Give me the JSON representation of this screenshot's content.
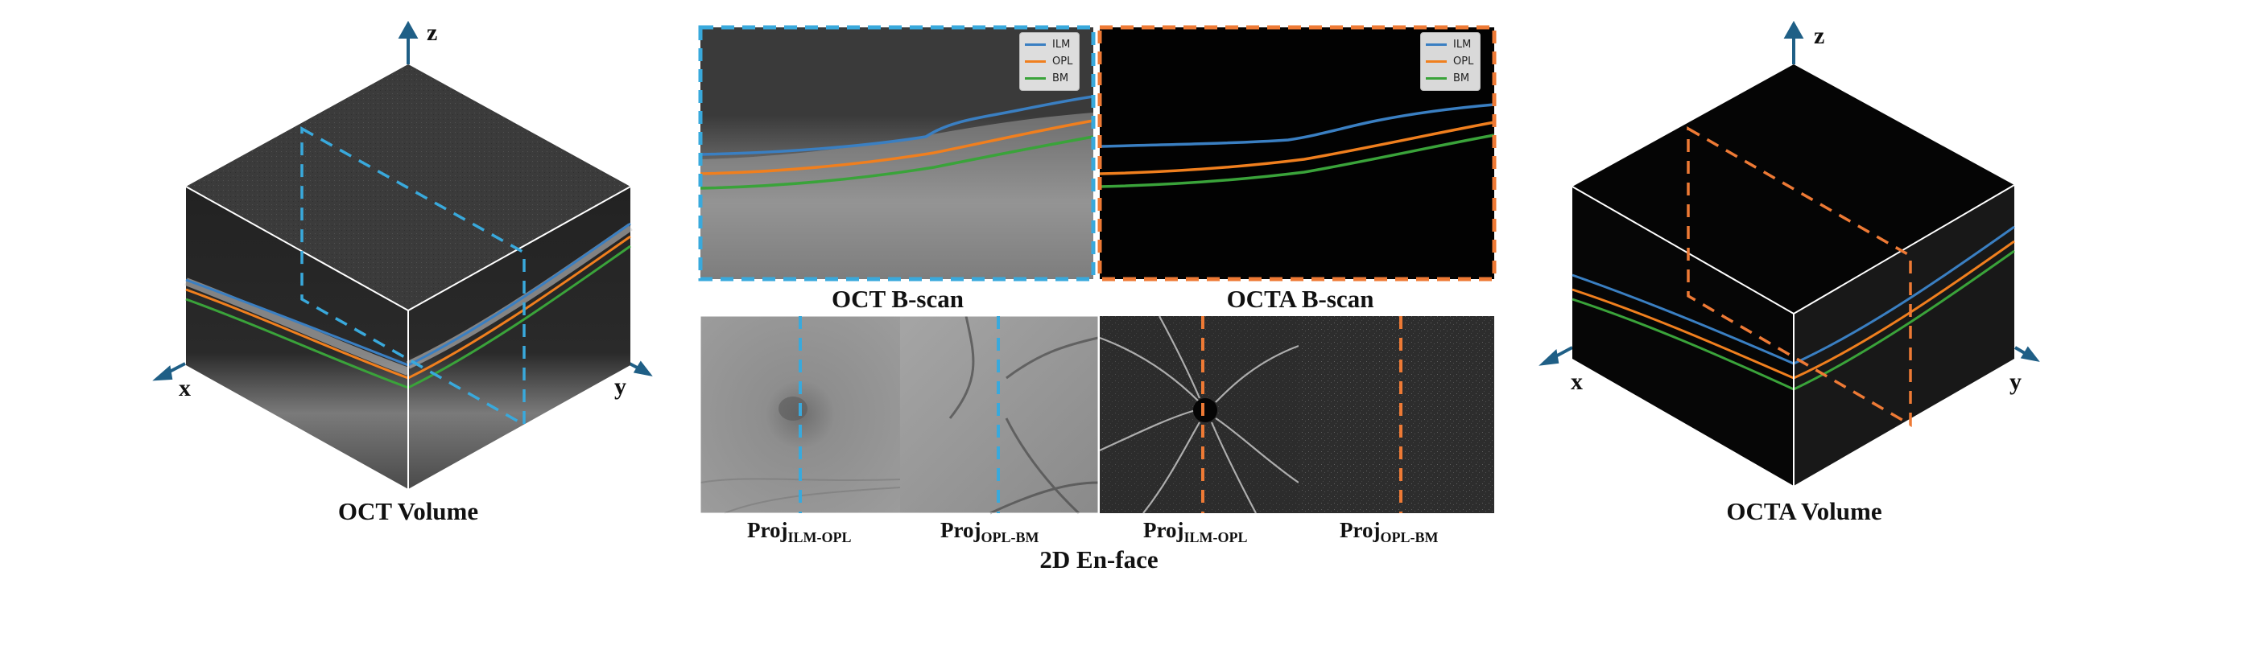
{
  "axes": {
    "z": "z",
    "x": "x",
    "y": "y"
  },
  "captions": {
    "oct_volume": "OCT Volume",
    "octa_volume": "OCTA Volume",
    "oct_bscan": "OCT B-scan",
    "octa_bscan": "OCTA B-scan",
    "enface": "2D En-face"
  },
  "projections": {
    "base": "Proj",
    "ilm_opl": "ILM-OPL",
    "opl_bm": "OPL-BM"
  },
  "legend": [
    {
      "label": "ILM",
      "color": "#3a7fc2"
    },
    {
      "label": "OPL",
      "color": "#f07f1e"
    },
    {
      "label": "BM",
      "color": "#3aa33a"
    }
  ],
  "colors": {
    "oct_accent": "#39a9dc",
    "octa_accent": "#ee7a35",
    "axis_arrow": "#1f5f86"
  }
}
